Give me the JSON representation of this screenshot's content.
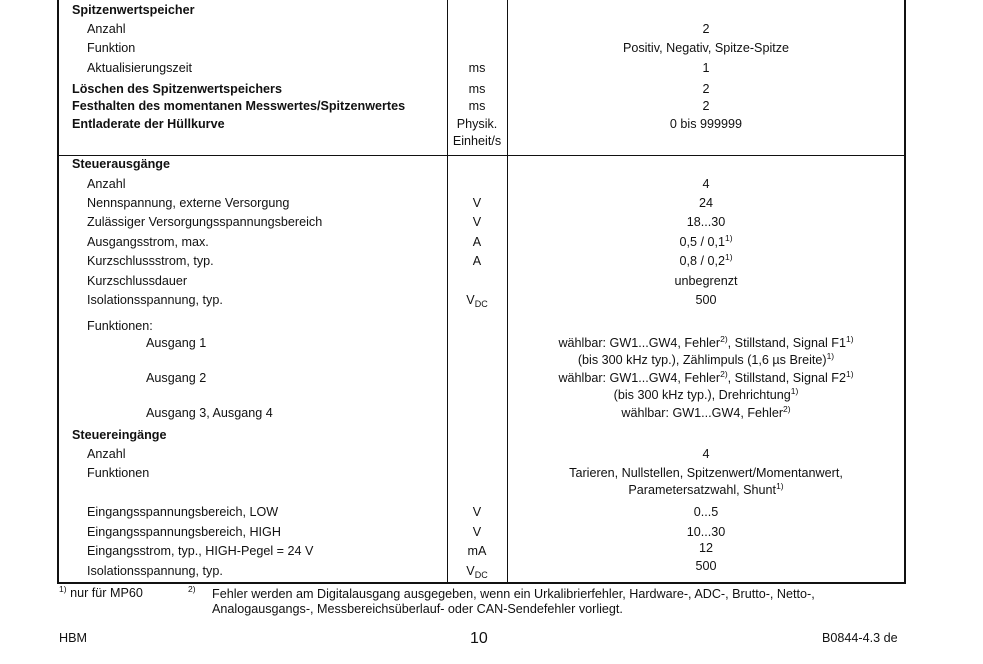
{
  "rows": [
    {
      "label": "Spitzenwertspeicher",
      "bold": true,
      "indent": 0
    },
    {
      "label": "Anzahl",
      "indent": 1,
      "value": [
        [
          {
            "t": "2"
          }
        ]
      ]
    },
    {
      "label": "Funktion",
      "indent": 1,
      "value": [
        [
          {
            "t": "Positiv, Negativ, Spitze-Spitze"
          }
        ]
      ]
    },
    {
      "label": "Aktualisierungszeit",
      "indent": 1,
      "unit": "ms",
      "value": [
        [
          {
            "t": "1"
          }
        ]
      ]
    },
    {
      "label": "Löschen des Spitzenwertspeichers",
      "bold": true,
      "indent": 0,
      "unit": "ms",
      "value": [
        [
          {
            "t": "2"
          }
        ]
      ]
    },
    {
      "label": "Festhalten des momentanen Messwertes/Spitzenwertes",
      "bold": true,
      "indent": 0,
      "unit": "ms",
      "value": [
        [
          {
            "t": "2"
          }
        ]
      ]
    },
    {
      "label": "Entladerate der Hüllkurve",
      "bold": true,
      "indent": 0,
      "unit": "Physik.",
      "unit2": "Einheit/s",
      "value": [
        [
          {
            "t": "0 bis 999999"
          }
        ]
      ]
    },
    {
      "label": "Steuerausgänge",
      "bold": true,
      "indent": 0
    },
    {
      "label": "Anzahl",
      "indent": 1,
      "value": [
        [
          {
            "t": "4"
          }
        ]
      ]
    },
    {
      "label": "Nennspannung, externe Versorgung",
      "indent": 1,
      "unit": "V",
      "value": [
        [
          {
            "t": "24"
          }
        ]
      ]
    },
    {
      "label": "Zulässiger Versorgungsspannungsbereich",
      "indent": 1,
      "unit": "V",
      "value": [
        [
          {
            "t": "18...30"
          }
        ]
      ]
    },
    {
      "label": "Ausgangsstrom, max.",
      "indent": 1,
      "unit": "A",
      "value": [
        [
          {
            "t": "0,5 / 0,1",
            "sup": "1)"
          }
        ]
      ]
    },
    {
      "label": "Kurzschlussstrom, typ.",
      "indent": 1,
      "unit": "A",
      "value": [
        [
          {
            "t": "0,8 / 0,2",
            "sup": "1)"
          }
        ]
      ]
    },
    {
      "label": "Kurzschlussdauer",
      "indent": 1,
      "value": [
        [
          {
            "t": "unbegrenzt"
          }
        ]
      ]
    },
    {
      "label": "Isolationsspannung, typ.",
      "indent": 1,
      "unit": "V",
      "unit_sub": "DC",
      "value": [
        [
          {
            "t": "500"
          }
        ]
      ]
    },
    {
      "label": "Funktionen:",
      "indent": 1
    },
    {
      "label": "Ausgang 1",
      "indent": 2,
      "value": [
        [
          {
            "t": "wählbar: GW1...GW4, Fehler",
            "sup": "2)"
          },
          {
            "t": ", Stillstand, Signal F1",
            "sup": "1)"
          }
        ],
        [
          {
            "t": "(bis 300 kHz typ.), Zählimpuls (1,6 µs Breite)",
            "sup": "1)"
          }
        ]
      ]
    },
    {
      "label": "Ausgang 2",
      "indent": 2,
      "value": [
        [
          {
            "t": "wählbar: GW1...GW4, Fehler",
            "sup": "2)"
          },
          {
            "t": ", Stillstand, Signal F2",
            "sup": "1)"
          }
        ],
        [
          {
            "t": "(bis 300 kHz typ.), Drehrichtung",
            "sup": "1)"
          }
        ]
      ]
    },
    {
      "label": "Ausgang 3, Ausgang 4",
      "indent": 2,
      "value": [
        [
          {
            "t": "wählbar: GW1...GW4, Fehler",
            "sup": "2)"
          }
        ]
      ]
    },
    {
      "label": "Steuereingänge",
      "bold": true,
      "indent": 0
    },
    {
      "label": "Anzahl",
      "indent": 1,
      "value": [
        [
          {
            "t": "4"
          }
        ]
      ]
    },
    {
      "label": "Funktionen",
      "indent": 1,
      "value": [
        [
          {
            "t": "Tarieren, Nullstellen, Spitzenwert/Momentanwert,"
          }
        ],
        [
          {
            "t": "Parametersatzwahl, Shunt",
            "sup": "1)"
          }
        ]
      ]
    },
    {
      "label": "Eingangsspannungsbereich, LOW",
      "indent": 1,
      "unit": "V",
      "value": [
        [
          {
            "t": "0...5"
          }
        ]
      ]
    },
    {
      "label": "Eingangsspannungsbereich, HIGH",
      "indent": 1,
      "unit": "V",
      "value": [
        [
          {
            "t": "10...30"
          }
        ]
      ]
    },
    {
      "label": "Eingangsstrom, typ., HIGH-Pegel = 24 V",
      "indent": 1,
      "unit": "mA",
      "value": [
        [
          {
            "t": "12"
          }
        ]
      ]
    },
    {
      "label": "Isolationsspannung, typ.",
      "indent": 1,
      "unit": "V",
      "unit_sub": "DC",
      "value": [
        [
          {
            "t": "500"
          }
        ]
      ]
    }
  ],
  "footnotes": {
    "fn1_mark": "1)",
    "fn1_text": "nur für MP60",
    "fn2_mark": "2)",
    "fn2_line1": "Fehler werden am Digitalausgang ausgegeben, wenn ein Urkalibrierfehler, Hardware-, ADC-, Brutto-, Netto-,",
    "fn2_line2": "Analogausgangs-, Messbereichsüberlauf- oder CAN-Sendefehler vorliegt."
  },
  "footer": {
    "left": "HBM",
    "page": "10",
    "right": "B0844-4.3 de"
  }
}
